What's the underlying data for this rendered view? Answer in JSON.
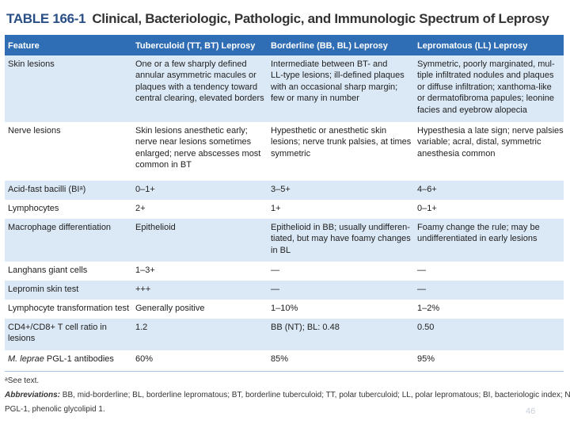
{
  "header": {
    "title_label": "TABLE 166-1",
    "title": "Clinical, Bacteriologic, Pathologic, and Immunologic Spectrum of Leprosy"
  },
  "table": {
    "columns": [
      "Feature",
      "Tuberculoid (TT, BT) Leprosy",
      "Borderline (BB, BL) Leprosy",
      "Lepromatous (LL) Leprosy"
    ],
    "rows": [
      [
        [
          "Skin lesions"
        ],
        [
          "One or a few sharply defined",
          "annular asymmetric macules or",
          "plaques with a tendency toward",
          "central clearing, elevated borders"
        ],
        [
          "Intermediate between BT- and",
          "LL-type lesions; ill-defined plaques",
          "with an occasional sharp margin;",
          "few or many in number"
        ],
        [
          "Symmetric, poorly marginated, mul-",
          "tiple infiltrated nodules and plaques",
          "or diffuse infiltration; xanthoma-like",
          "or dermatofibroma papules; leonine",
          "facies and eyebrow alopecia"
        ]
      ],
      [
        [
          "Nerve lesions"
        ],
        [
          "Skin lesions anesthetic early;",
          "nerve near lesions sometimes",
          "enlarged; nerve abscesses most",
          "common in BT"
        ],
        [
          "Hypesthetic or anesthetic skin",
          "lesions; nerve trunk palsies, at times",
          "symmetric"
        ],
        [
          "Hypesthesia a late sign; nerve palsies",
          "variable; acral, distal, symmetric",
          "anesthesia common"
        ]
      ],
      [
        [
          "Acid-fast bacilli (BIᵃ)"
        ],
        [
          "0–1+"
        ],
        [
          "3–5+"
        ],
        [
          "4–6+"
        ]
      ],
      [
        [
          "Lymphocytes"
        ],
        [
          "2+"
        ],
        [
          "1+"
        ],
        [
          "0–1+"
        ]
      ],
      [
        [
          "Macrophage differentiation"
        ],
        [
          "Epithelioid"
        ],
        [
          "Epithelioid in BB; usually undifferen-",
          "tiated, but may have foamy changes",
          "in BL"
        ],
        [
          "Foamy change the rule; may be",
          "undifferentiated in early lesions"
        ]
      ],
      [
        [
          "Langhans giant cells"
        ],
        [
          "1–3+"
        ],
        [
          "—"
        ],
        [
          "—"
        ]
      ],
      [
        [
          "Lepromin skin test"
        ],
        [
          "+++"
        ],
        [
          "—"
        ],
        [
          "—"
        ]
      ],
      [
        [
          "Lymphocyte transformation test"
        ],
        [
          "Generally positive"
        ],
        [
          "1–10%"
        ],
        [
          "1–2%"
        ]
      ],
      [
        [
          "CD4+/CD8+ T cell ratio in",
          "lesions"
        ],
        [
          "1.2"
        ],
        [
          "BB (NT); BL: 0.48"
        ],
        [
          "0.50"
        ]
      ],
      [
        [
          "M. leprae PGL-1 antibodies"
        ],
        [
          "60%"
        ],
        [
          "85%"
        ],
        [
          "95%"
        ]
      ]
    ]
  },
  "footnote": "ᵃSee text.",
  "abbreviations": {
    "label": "Abbreviations:",
    "lines": [
      "BB, mid-borderline; BL, borderline lepromatous; BT, borderline tuberculoid; TT, polar tuberculoid; LL, polar lepromatous; BI, bacteriologic index; NT, not tested;",
      "PGL-1, phenolic glycolipid 1."
    ]
  },
  "page_number": "46"
}
